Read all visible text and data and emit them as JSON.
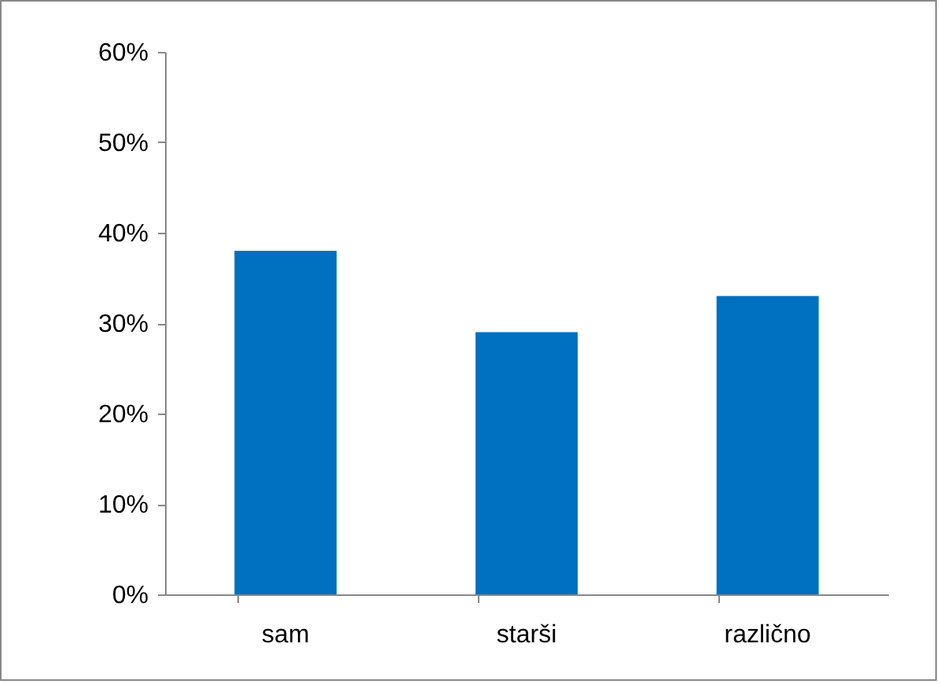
{
  "chart_data": {
    "type": "bar",
    "categories": [
      "sam",
      "starši",
      "različno"
    ],
    "values": [
      38,
      29,
      33
    ],
    "color": "#0070c0",
    "ylim": [
      0,
      60
    ],
    "yticks": [
      {
        "value": 0,
        "label": "0%"
      },
      {
        "value": 10,
        "label": "10%"
      },
      {
        "value": 20,
        "label": "20%"
      },
      {
        "value": 30,
        "label": "30%"
      },
      {
        "value": 40,
        "label": "40%"
      },
      {
        "value": 50,
        "label": "50%"
      },
      {
        "value": 60,
        "label": "60%"
      }
    ],
    "grid": false,
    "legend": false
  }
}
